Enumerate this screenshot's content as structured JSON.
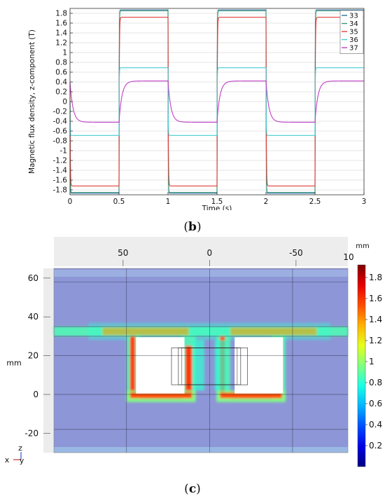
{
  "chart_data": [
    {
      "type": "line",
      "caption": "(b)",
      "xlabel": "Time (s)",
      "ylabel": "Magnetic flux density, z-component (T)",
      "xlim": [
        0,
        3
      ],
      "ylim": [
        -1.9,
        1.9
      ],
      "xticks": [
        0,
        0.5,
        1,
        1.5,
        2,
        2.5,
        3
      ],
      "yticks": [
        1.8,
        1.6,
        1.4,
        1.2,
        1,
        0.8,
        0.6,
        0.4,
        0.2,
        0,
        -0.2,
        -0.4,
        -0.6,
        -0.8,
        -1,
        -1.2,
        -1.4,
        -1.6,
        -1.8
      ],
      "grid": true,
      "legend_position": "top-right",
      "period_s": 1.0,
      "switch_times_s": [
        0.5,
        1.0,
        1.5,
        2.0,
        2.5
      ],
      "series": [
        {
          "name": "33",
          "color": "#2e6f9e",
          "start": 0.0,
          "high": 1.87,
          "low": -1.87,
          "tau_s": 0.002
        },
        {
          "name": "34",
          "color": "#3a9a78",
          "start": 0.0,
          "high": 1.85,
          "low": -1.85,
          "tau_s": 0.002
        },
        {
          "name": "35",
          "color": "#e0403a",
          "start": 0.4,
          "high": 1.72,
          "low": -1.72,
          "tau_s": 0.003
        },
        {
          "name": "36",
          "color": "#45cdd6",
          "start": 0.0,
          "high": 0.69,
          "low": -0.69,
          "tau_s": 0.002
        },
        {
          "name": "37",
          "color": "#c040c8",
          "start": 0.4,
          "high": 0.42,
          "low": -0.42,
          "tau_s": 0.03
        }
      ]
    },
    {
      "type": "heatmap",
      "caption": "(c)",
      "x_unit": "mm",
      "y_unit": "mm",
      "xlim": [
        90,
        -80
      ],
      "ylim": [
        -30,
        65
      ],
      "xticks": [
        50,
        0,
        -50
      ],
      "yticks": [
        60,
        40,
        20,
        0,
        -20
      ],
      "corner_label": "10",
      "colorbar": {
        "min": 0,
        "max": 1.92,
        "ticks": [
          1.8,
          1.6,
          1.4,
          1.2,
          1,
          0.8,
          0.6,
          0.4,
          0.2
        ],
        "colormap": "jet"
      },
      "axis_triad": {
        "z": "z",
        "x": "x",
        "y": "y"
      }
    }
  ]
}
